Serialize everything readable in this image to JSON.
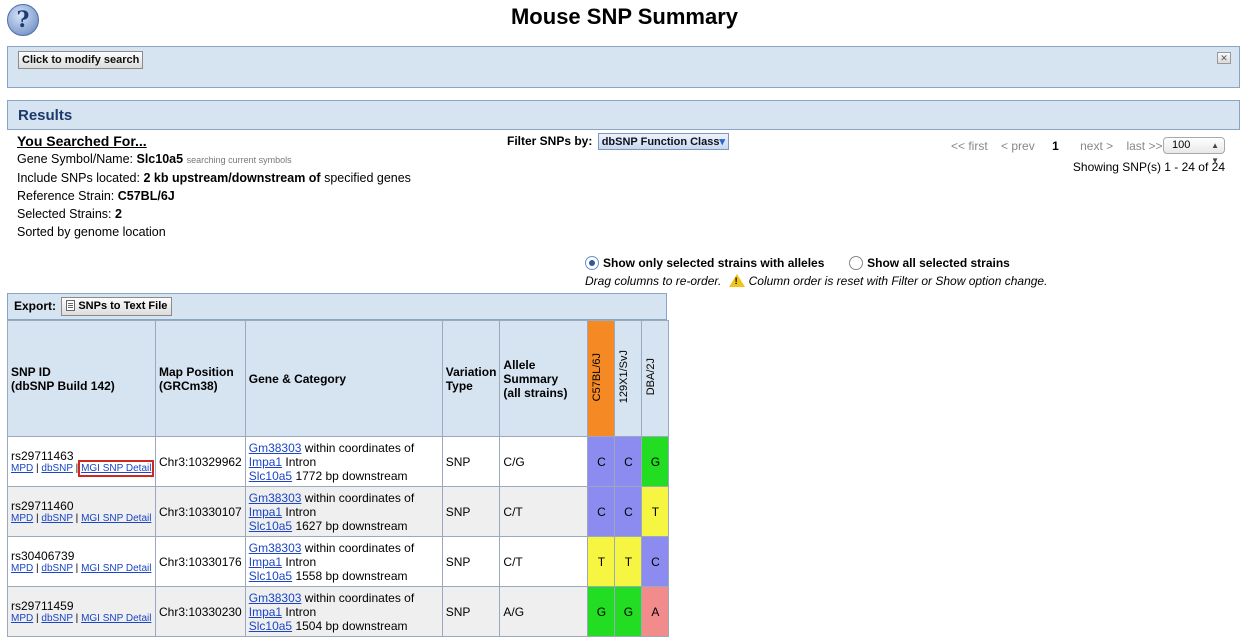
{
  "page": {
    "title": "Mouse SNP Summary",
    "help_icon": "?"
  },
  "modify": {
    "button": "Click to modify search",
    "toggle_icon": "collapse-icon"
  },
  "results": {
    "heading": "Results"
  },
  "searched": {
    "heading": "You Searched For...",
    "gene_label": "Gene Symbol/Name: ",
    "gene_value": "Slc10a5",
    "gene_note": "searching current symbols",
    "include_label": "Include SNPs located: ",
    "include_value": "2 kb upstream/downstream of",
    "include_suffix": " specified genes",
    "ref_label": "Reference Strain: ",
    "ref_value": "C57BL/6J",
    "strains_label": "Selected Strains: ",
    "strains_value": "2",
    "sorted": "Sorted by genome location"
  },
  "filter": {
    "label": "Filter SNPs by:",
    "button": "dbSNP Function Class"
  },
  "pager": {
    "first": "<< first",
    "prev": "< prev",
    "current": "1",
    "next": "next >",
    "last": "last >>",
    "page_size": "100",
    "showing": "Showing SNP(s) 1 - 24 of 24"
  },
  "options": {
    "only_selected": "Show only selected strains with alleles",
    "all_selected": "Show all selected strains",
    "drag_note": "Drag columns to re-order.",
    "warning_note": "Column order is reset with Filter or Show option change."
  },
  "export": {
    "label": "Export:",
    "button": "SNPs to Text File"
  },
  "table": {
    "headers": {
      "snp_id": "SNP ID",
      "snp_id_sub": "(dbSNP Build 142)",
      "map": "Map Position",
      "map_sub": "(GRCm38)",
      "gene": "Gene & Category",
      "variation": "Variation",
      "variation_sub": "Type",
      "allele": "Allele",
      "allele_sub": "Summary",
      "allele_sub2": "(all strains)"
    },
    "strains": [
      "C57BL/6J",
      "129X1/SvJ",
      "DBA/2J"
    ],
    "ref_color": "#f58a25",
    "link_labels": {
      "mpd": "MPD",
      "dbsnp": "dbSNP",
      "mgi": "MGI SNP Detail",
      "sep": " | "
    },
    "rows": [
      {
        "id": "rs29711463",
        "pos": "Chr3:10329962",
        "g1": "Gm38303",
        "g1_text": " within coordinates of",
        "g2": "Impa1",
        "g2_text": " Intron",
        "g3": "Slc10a5",
        "g3_text": " 1772 bp downstream",
        "type": "SNP",
        "summary": "C/G",
        "alleles": [
          "C",
          "C",
          "G"
        ]
      },
      {
        "id": "rs29711460",
        "pos": "Chr3:10330107",
        "g1": "Gm38303",
        "g1_text": " within coordinates of",
        "g2": "Impa1",
        "g2_text": " Intron",
        "g3": "Slc10a5",
        "g3_text": " 1627 bp downstream",
        "type": "SNP",
        "summary": "C/T",
        "alleles": [
          "C",
          "C",
          "T"
        ]
      },
      {
        "id": "rs30406739",
        "pos": "Chr3:10330176",
        "g1": "Gm38303",
        "g1_text": " within coordinates of",
        "g2": "Impa1",
        "g2_text": " Intron",
        "g3": "Slc10a5",
        "g3_text": " 1558 bp downstream",
        "type": "SNP",
        "summary": "C/T",
        "alleles": [
          "T",
          "T",
          "C"
        ]
      },
      {
        "id": "rs29711459",
        "pos": "Chr3:10330230",
        "g1": "Gm38303",
        "g1_text": " within coordinates of",
        "g2": "Impa1",
        "g2_text": " Intron",
        "g3": "Slc10a5",
        "g3_text": " 1504 bp downstream",
        "type": "SNP",
        "summary": "A/G",
        "alleles": [
          "G",
          "G",
          "A"
        ]
      }
    ],
    "allele_colors": {
      "A": "#f28b8b",
      "C": "#8c8cf0",
      "G": "#22dd22",
      "T": "#f5f542"
    }
  }
}
